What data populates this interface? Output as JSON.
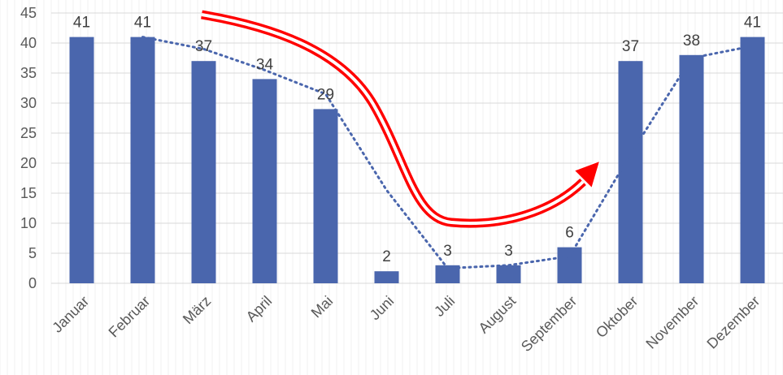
{
  "chart_data": {
    "type": "bar",
    "categories": [
      "Januar",
      "Februar",
      "März",
      "April",
      "Mai",
      "Juni",
      "Juli",
      "August",
      "September",
      "Oktober",
      "November",
      "Dezember"
    ],
    "values": [
      41,
      41,
      37,
      34,
      29,
      2,
      3,
      3,
      6,
      37,
      38,
      41
    ],
    "ylim": [
      0,
      45
    ],
    "yticks": [
      0,
      5,
      10,
      15,
      20,
      25,
      30,
      35,
      40,
      45
    ],
    "grid": true,
    "trendline": "dotted",
    "colors": {
      "bar": "#4a66ad",
      "trendline": "#4a66ad",
      "arrow": "#ff0000",
      "grid": "#d9d9d9"
    }
  }
}
